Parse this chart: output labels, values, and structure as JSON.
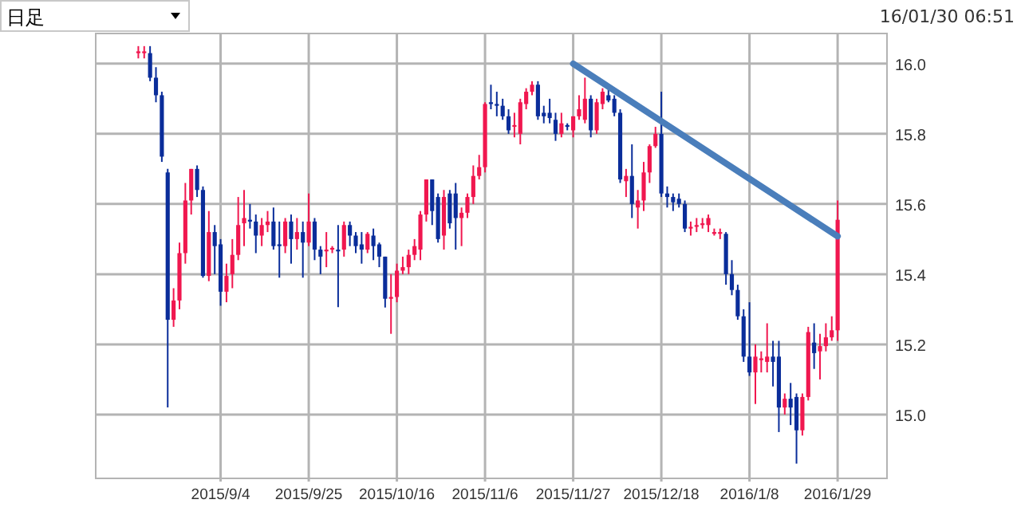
{
  "chart_data": {
    "type": "candlestick",
    "annotations": [
      "日足",
      "16/01/30 06:51"
    ],
    "categories": [
      null,
      null,
      null,
      null,
      null,
      null,
      null,
      null,
      null,
      null,
      null,
      null,
      null,
      null,
      "2015/9/4",
      null,
      null,
      null,
      null,
      null,
      null,
      null,
      null,
      null,
      null,
      null,
      null,
      null,
      null,
      "2015/9/25",
      null,
      null,
      null,
      null,
      null,
      null,
      null,
      null,
      null,
      null,
      null,
      null,
      null,
      null,
      "2015/10/16",
      null,
      null,
      null,
      null,
      null,
      null,
      null,
      null,
      null,
      null,
      null,
      null,
      null,
      null,
      "2015/11/6",
      null,
      null,
      null,
      null,
      null,
      null,
      null,
      null,
      null,
      null,
      null,
      null,
      null,
      null,
      "2015/11/27",
      null,
      null,
      null,
      null,
      null,
      null,
      null,
      null,
      null,
      null,
      null,
      null,
      null,
      null,
      "2015/12/18",
      null,
      null,
      null,
      null,
      null,
      null,
      null,
      null,
      null,
      null,
      null,
      null,
      null,
      null,
      "2016/1/8",
      null,
      null,
      null,
      null,
      null,
      null,
      null,
      null,
      null,
      null,
      null,
      null,
      null,
      null,
      "2016/1/29"
    ],
    "ohlc": [
      [
        16.03,
        16.05,
        16.015,
        16.035
      ],
      [
        16.03,
        16.05,
        16.015,
        16.035
      ],
      [
        16.03,
        16.05,
        15.95,
        15.96
      ],
      [
        15.96,
        15.99,
        15.89,
        15.91
      ],
      [
        15.91,
        15.92,
        15.72,
        15.735
      ],
      [
        15.69,
        15.7,
        15.02,
        15.27
      ],
      [
        15.27,
        15.36,
        15.25,
        15.325
      ],
      [
        15.325,
        15.49,
        15.3,
        15.46
      ],
      [
        15.46,
        15.66,
        15.43,
        15.61
      ],
      [
        15.61,
        15.7,
        15.57,
        15.7
      ],
      [
        15.7,
        15.71,
        15.62,
        15.64
      ],
      [
        15.64,
        15.65,
        15.39,
        15.395
      ],
      [
        15.395,
        15.58,
        15.38,
        15.52
      ],
      [
        15.52,
        15.54,
        15.4,
        15.48
      ],
      [
        15.485,
        15.5,
        15.31,
        15.35
      ],
      [
        15.35,
        15.43,
        15.32,
        15.395
      ],
      [
        15.4,
        15.5,
        15.36,
        15.455
      ],
      [
        15.455,
        15.62,
        15.44,
        15.54
      ],
      [
        15.545,
        15.64,
        15.48,
        15.56
      ],
      [
        15.555,
        15.6,
        15.53,
        15.55
      ],
      [
        15.55,
        15.57,
        15.46,
        15.51
      ],
      [
        15.51,
        15.56,
        15.48,
        15.54
      ],
      [
        15.54,
        15.58,
        15.52,
        15.55
      ],
      [
        15.55,
        15.59,
        15.47,
        15.48
      ],
      [
        15.485,
        15.55,
        15.39,
        15.48
      ],
      [
        15.48,
        15.56,
        15.46,
        15.55
      ],
      [
        15.55,
        15.57,
        15.43,
        15.5
      ],
      [
        15.5,
        15.56,
        15.47,
        15.52
      ],
      [
        15.52,
        15.55,
        15.39,
        15.49
      ],
      [
        15.49,
        15.63,
        15.48,
        15.55
      ],
      [
        15.55,
        15.56,
        15.44,
        15.47
      ],
      [
        15.47,
        15.48,
        15.4,
        15.45
      ],
      [
        15.465,
        15.52,
        15.42,
        15.47
      ],
      [
        15.47,
        15.48,
        15.46,
        15.475
      ],
      [
        15.47,
        15.54,
        15.306,
        15.465
      ],
      [
        15.47,
        15.55,
        15.45,
        15.54
      ],
      [
        15.54,
        15.55,
        15.48,
        15.51
      ],
      [
        15.51,
        15.52,
        15.46,
        15.48
      ],
      [
        15.485,
        15.52,
        15.43,
        15.47
      ],
      [
        15.47,
        15.52,
        15.46,
        15.515
      ],
      [
        15.51,
        15.53,
        15.44,
        15.48
      ],
      [
        15.485,
        15.49,
        15.42,
        15.45
      ],
      [
        15.45,
        15.45,
        15.305,
        15.33
      ],
      [
        15.33,
        15.4,
        15.23,
        15.335
      ],
      [
        15.335,
        15.43,
        15.32,
        15.41
      ],
      [
        15.41,
        15.45,
        15.4,
        15.42
      ],
      [
        15.42,
        15.47,
        15.4,
        15.455
      ],
      [
        15.455,
        15.5,
        15.44,
        15.48
      ],
      [
        15.47,
        15.58,
        15.44,
        15.57
      ],
      [
        15.57,
        15.67,
        15.55,
        15.67
      ],
      [
        15.67,
        15.67,
        15.54,
        15.58
      ],
      [
        15.62,
        15.63,
        15.49,
        15.5
      ],
      [
        15.51,
        15.64,
        15.47,
        15.62
      ],
      [
        15.63,
        15.64,
        15.53,
        15.545
      ],
      [
        15.63,
        15.66,
        15.47,
        15.56
      ],
      [
        15.56,
        15.59,
        15.48,
        15.575
      ],
      [
        15.575,
        15.63,
        15.56,
        15.62
      ],
      [
        15.62,
        15.71,
        15.6,
        15.68
      ],
      [
        15.68,
        15.74,
        15.67,
        15.705
      ],
      [
        15.705,
        15.89,
        15.69,
        15.885
      ],
      [
        15.89,
        15.94,
        15.87,
        15.885
      ],
      [
        15.885,
        15.92,
        15.85,
        15.88
      ],
      [
        15.88,
        15.9,
        15.84,
        15.85
      ],
      [
        15.85,
        15.87,
        15.8,
        15.81
      ],
      [
        15.82,
        15.86,
        15.79,
        15.825
      ],
      [
        15.8,
        15.9,
        15.77,
        15.89
      ],
      [
        15.885,
        15.93,
        15.87,
        15.92
      ],
      [
        15.92,
        15.95,
        15.91,
        15.94
      ],
      [
        15.94,
        15.95,
        15.84,
        15.85
      ],
      [
        15.86,
        15.88,
        15.83,
        15.85
      ],
      [
        15.86,
        15.9,
        15.83,
        15.845
      ],
      [
        15.84,
        15.86,
        15.78,
        15.8
      ],
      [
        15.8,
        15.86,
        15.79,
        15.83
      ],
      [
        15.825,
        15.83,
        15.81,
        15.82
      ],
      [
        15.81,
        15.85,
        15.79,
        15.85
      ],
      [
        15.85,
        15.91,
        15.84,
        15.87
      ],
      [
        15.84,
        15.96,
        15.83,
        15.9
      ],
      [
        15.9,
        15.91,
        15.79,
        15.81
      ],
      [
        15.81,
        15.9,
        15.8,
        15.89
      ],
      [
        15.885,
        15.93,
        15.87,
        15.92
      ],
      [
        15.91,
        15.93,
        15.89,
        15.895
      ],
      [
        15.9,
        15.91,
        15.85,
        15.86
      ],
      [
        15.86,
        15.87,
        15.66,
        15.67
      ],
      [
        15.665,
        15.7,
        15.62,
        15.68
      ],
      [
        15.68,
        15.77,
        15.56,
        15.6
      ],
      [
        15.59,
        15.64,
        15.53,
        15.61
      ],
      [
        15.61,
        15.72,
        15.58,
        15.69
      ],
      [
        15.69,
        15.77,
        15.66,
        15.765
      ],
      [
        15.765,
        15.82,
        15.76,
        15.8
      ],
      [
        15.8,
        15.92,
        15.62,
        15.63
      ],
      [
        15.63,
        15.65,
        15.59,
        15.62
      ],
      [
        15.62,
        15.63,
        15.58,
        15.605
      ],
      [
        15.615,
        15.63,
        15.59,
        15.6
      ],
      [
        15.6,
        15.61,
        15.52,
        15.53
      ],
      [
        15.53,
        15.55,
        15.51,
        15.535
      ],
      [
        15.535,
        15.56,
        15.52,
        15.54
      ],
      [
        15.54,
        15.56,
        15.53,
        15.545
      ],
      [
        15.54,
        15.57,
        15.52,
        15.56
      ],
      [
        15.515,
        15.53,
        15.51,
        15.52
      ],
      [
        15.515,
        15.53,
        15.5,
        15.52
      ],
      [
        15.515,
        15.52,
        15.37,
        15.4
      ],
      [
        15.4,
        15.44,
        15.34,
        15.355
      ],
      [
        15.355,
        15.37,
        15.27,
        15.28
      ],
      [
        15.28,
        15.3,
        15.15,
        15.165
      ],
      [
        15.165,
        15.32,
        15.11,
        15.12
      ],
      [
        15.12,
        15.2,
        15.03,
        15.165
      ],
      [
        15.155,
        15.18,
        15.12,
        15.16
      ],
      [
        15.15,
        15.26,
        15.12,
        15.165
      ],
      [
        15.165,
        15.21,
        15.08,
        15.15
      ],
      [
        15.165,
        15.21,
        14.95,
        15.02
      ],
      [
        15.02,
        15.06,
        15.0,
        15.045
      ],
      [
        15.045,
        15.09,
        14.97,
        15.02
      ],
      [
        15.05,
        15.06,
        14.86,
        14.955
      ],
      [
        14.955,
        15.06,
        14.94,
        15.05
      ],
      [
        15.05,
        15.25,
        15.04,
        15.235
      ],
      [
        15.205,
        15.26,
        15.13,
        15.175
      ],
      [
        15.18,
        15.23,
        15.1,
        15.195
      ],
      [
        15.195,
        15.26,
        15.18,
        15.22
      ],
      [
        15.22,
        15.28,
        15.21,
        15.24
      ],
      [
        15.24,
        15.61,
        15.21,
        15.555
      ]
    ],
    "series": [
      {
        "type": "line",
        "color": "#4a7ebb",
        "x": [
          "2015/11/27",
          "2016/1/29"
        ],
        "values": [
          16.0,
          15.508
        ]
      }
    ],
    "ylim": [
      14.818,
      16.086
    ],
    "yticks": [
      {
        "value": 15.0,
        "label": "15.0"
      },
      {
        "value": 15.2,
        "label": "15.2"
      },
      {
        "value": 15.4,
        "label": "15.4"
      },
      {
        "value": 15.6,
        "label": "15.6"
      },
      {
        "value": 15.8,
        "label": "15.8"
      },
      {
        "value": 16.0,
        "label": "16.0"
      }
    ],
    "grid": true
  }
}
